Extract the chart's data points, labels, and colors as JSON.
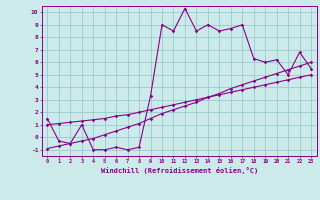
{
  "xlabel": "Windchill (Refroidissement éolien,°C)",
  "bg_color": "#cceaea",
  "line_color": "#880088",
  "grid_color": "#99cccc",
  "x_data": [
    0,
    1,
    2,
    3,
    4,
    5,
    6,
    7,
    8,
    9,
    10,
    11,
    12,
    13,
    14,
    15,
    16,
    17,
    18,
    19,
    20,
    21,
    22,
    23
  ],
  "y_curve": [
    1.5,
    -0.3,
    -0.5,
    1.0,
    -1.0,
    -1.0,
    -0.8,
    -1.0,
    -0.8,
    3.3,
    9.0,
    8.5,
    10.3,
    8.5,
    9.0,
    8.5,
    8.7,
    9.0,
    6.3,
    6.0,
    6.2,
    5.0,
    6.8,
    5.5
  ],
  "y_line1": [
    1.0,
    1.1,
    1.2,
    1.3,
    1.4,
    1.5,
    1.7,
    1.8,
    2.0,
    2.2,
    2.4,
    2.6,
    2.8,
    3.0,
    3.2,
    3.4,
    3.6,
    3.8,
    4.0,
    4.2,
    4.4,
    4.6,
    4.8,
    5.0
  ],
  "y_line2": [
    -0.9,
    -0.7,
    -0.5,
    -0.3,
    -0.1,
    0.2,
    0.5,
    0.8,
    1.1,
    1.5,
    1.9,
    2.2,
    2.5,
    2.8,
    3.2,
    3.5,
    3.9,
    4.2,
    4.5,
    4.8,
    5.1,
    5.4,
    5.7,
    6.0
  ],
  "xlim": [
    -0.5,
    23.5
  ],
  "ylim": [
    -1.5,
    10.5
  ],
  "yticks": [
    -1,
    0,
    1,
    2,
    3,
    4,
    5,
    6,
    7,
    8,
    9,
    10
  ]
}
